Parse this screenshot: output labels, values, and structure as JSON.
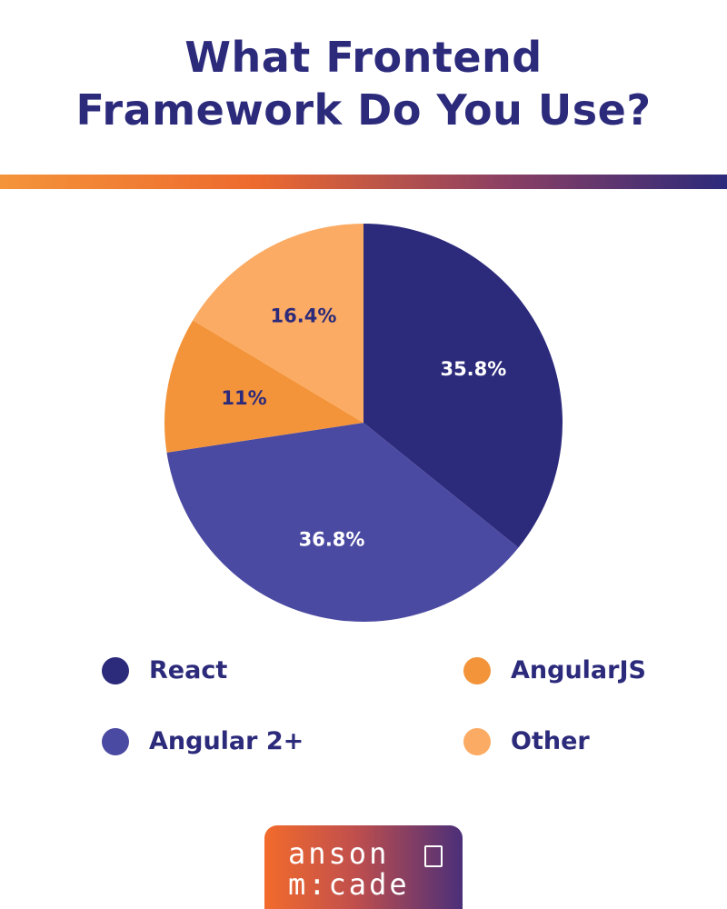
{
  "title": {
    "line1": "What Frontend",
    "line2": "Framework Do You Use?"
  },
  "chart_data": {
    "type": "pie",
    "title": "What Frontend Framework Do You Use?",
    "slices": [
      {
        "label": "React",
        "value": 35.8,
        "display": "35.8%",
        "color": "#2c2a7b",
        "text_color": "#ffffff"
      },
      {
        "label": "Angular 2+",
        "value": 36.8,
        "display": "36.8%",
        "color": "#4b4aa2",
        "text_color": "#ffffff"
      },
      {
        "label": "AngularJS",
        "value": 11,
        "display": "11%",
        "color": "#f4943a",
        "text_color": "#2c2a7b"
      },
      {
        "label": "Other",
        "value": 16.4,
        "display": "16.4%",
        "color": "#fbab63",
        "text_color": "#2c2a7b"
      }
    ],
    "start_angle": "12 o'clock",
    "direction": "clockwise",
    "legend": {
      "placement": "bottom",
      "items": [
        {
          "label": "React",
          "color": "#2c2a7b"
        },
        {
          "label": "AngularJS",
          "color": "#f4943a"
        },
        {
          "label": "Angular 2+",
          "color": "#4b4aa2"
        },
        {
          "label": "Other",
          "color": "#fbab63"
        }
      ]
    }
  },
  "logo": {
    "line1": "anson",
    "line2": "m:cade"
  },
  "colors": {
    "title": "#2c2a7b",
    "gradient_start": "#f4943a",
    "gradient_end": "#2c2a7b"
  }
}
